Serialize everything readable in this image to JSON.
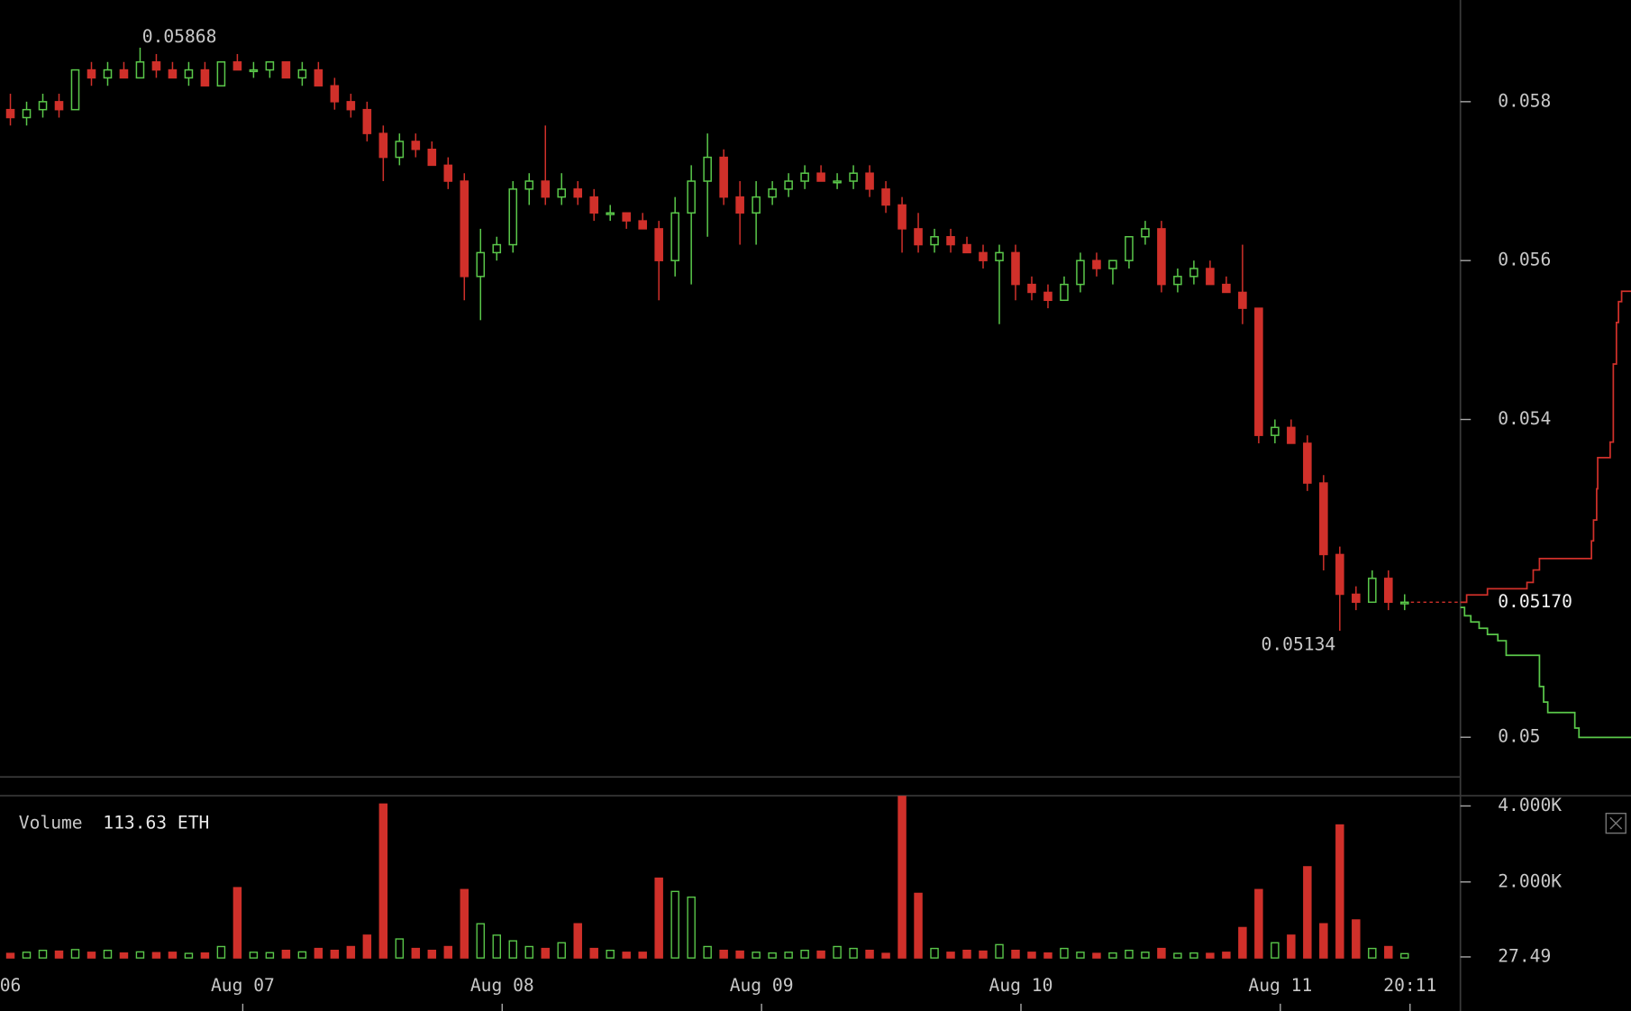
{
  "chart_data": {
    "type": "candlestick",
    "up_color": "#5ac84a",
    "down_color": "#d0302a",
    "x": [
      2.5,
      4,
      5.5,
      7,
      8.5,
      10,
      11.5,
      13,
      14.5,
      16,
      17.5,
      19,
      20.5,
      22,
      23.5,
      25,
      26.5,
      28,
      29.5,
      31,
      32.5,
      34,
      35.5,
      37,
      38.5,
      40,
      41.5,
      43,
      44.5,
      46,
      47.5,
      49,
      50.5,
      52,
      53.5,
      55,
      56.5,
      58,
      59.5,
      61,
      62.5,
      64,
      65.5,
      67,
      68.5,
      70,
      71.5,
      73,
      74.5,
      76,
      77.5,
      79,
      80.5,
      82,
      83.5,
      85,
      86.5,
      88,
      89.5,
      91,
      92.5,
      94,
      95.5,
      97,
      98.5,
      100,
      101.5,
      103,
      104.5,
      106,
      107.5,
      109,
      110.5,
      112,
      113.5,
      115,
      116.5,
      118,
      119.5,
      121,
      122.5,
      124,
      125.5,
      127,
      128.5,
      130,
      131.5
    ],
    "open": [
      0.0579,
      0.0578,
      0.0579,
      0.058,
      0.0579,
      0.0584,
      0.0583,
      0.0584,
      0.0583,
      0.0585,
      0.0584,
      0.0583,
      0.0584,
      0.0582,
      0.0585,
      0.0584,
      0.0584,
      0.0585,
      0.0583,
      0.0584,
      0.0582,
      0.058,
      0.0579,
      0.0576,
      0.0573,
      0.0575,
      0.0574,
      0.0572,
      0.057,
      0.0558,
      0.0561,
      0.0562,
      0.0569,
      0.057,
      0.0568,
      0.0569,
      0.0568,
      0.0566,
      0.0566,
      0.0565,
      0.0564,
      0.056,
      0.0566,
      0.057,
      0.0573,
      0.0568,
      0.0566,
      0.0568,
      0.0569,
      0.057,
      0.0571,
      0.057,
      0.057,
      0.0571,
      0.0569,
      0.0567,
      0.0564,
      0.0562,
      0.0563,
      0.0562,
      0.0561,
      0.056,
      0.0561,
      0.0557,
      0.0556,
      0.0555,
      0.0557,
      0.056,
      0.0559,
      0.056,
      0.0563,
      0.0564,
      0.0557,
      0.0558,
      0.0559,
      0.0557,
      0.0556,
      0.0554,
      0.0538,
      0.0539,
      0.0537,
      0.0532,
      0.0523,
      0.0518,
      0.0517,
      0.052,
      0.0517
    ],
    "high": [
      0.0581,
      0.058,
      0.0581,
      0.0581,
      0.0584,
      0.0585,
      0.0585,
      0.0585,
      0.05868,
      0.0586,
      0.0585,
      0.0585,
      0.0585,
      0.0585,
      0.0586,
      0.0585,
      0.0585,
      0.0585,
      0.0585,
      0.0585,
      0.0583,
      0.0581,
      0.058,
      0.0577,
      0.0576,
      0.0576,
      0.0575,
      0.0573,
      0.0571,
      0.0564,
      0.0563,
      0.057,
      0.0571,
      0.0577,
      0.0571,
      0.057,
      0.0569,
      0.0567,
      0.0566,
      0.0566,
      0.0565,
      0.0568,
      0.0572,
      0.0576,
      0.0574,
      0.057,
      0.057,
      0.057,
      0.0571,
      0.0572,
      0.0572,
      0.0571,
      0.0572,
      0.0572,
      0.057,
      0.0568,
      0.0566,
      0.0564,
      0.0564,
      0.0563,
      0.0562,
      0.0562,
      0.0562,
      0.0558,
      0.0557,
      0.0558,
      0.0561,
      0.0561,
      0.056,
      0.0563,
      0.0565,
      0.0565,
      0.0559,
      0.056,
      0.056,
      0.0558,
      0.0562,
      0.0554,
      0.054,
      0.054,
      0.0538,
      0.0533,
      0.0524,
      0.0519,
      0.0521,
      0.0521,
      0.0518
    ],
    "low": [
      0.0577,
      0.0577,
      0.0578,
      0.0578,
      0.0579,
      0.0582,
      0.0582,
      0.0583,
      0.0583,
      0.0583,
      0.0583,
      0.0582,
      0.0582,
      0.0582,
      0.0584,
      0.0583,
      0.0583,
      0.0583,
      0.0582,
      0.0582,
      0.0579,
      0.0578,
      0.0575,
      0.057,
      0.0572,
      0.0573,
      0.0572,
      0.0569,
      0.0555,
      0.05525,
      0.056,
      0.0561,
      0.0567,
      0.0567,
      0.0567,
      0.0567,
      0.0565,
      0.0565,
      0.0564,
      0.0564,
      0.0555,
      0.0558,
      0.0557,
      0.0563,
      0.0567,
      0.0562,
      0.0562,
      0.0567,
      0.0568,
      0.0569,
      0.057,
      0.0569,
      0.0569,
      0.0568,
      0.0566,
      0.0561,
      0.0561,
      0.0561,
      0.0561,
      0.0561,
      0.0559,
      0.0552,
      0.0555,
      0.0555,
      0.0554,
      0.0555,
      0.0556,
      0.0558,
      0.0557,
      0.0559,
      0.0562,
      0.0556,
      0.0556,
      0.0557,
      0.0557,
      0.0556,
      0.0552,
      0.0537,
      0.0537,
      0.0537,
      0.0531,
      0.0521,
      0.05134,
      0.0516,
      0.0517,
      0.0516,
      0.0516
    ],
    "close": [
      0.0578,
      0.0579,
      0.058,
      0.0579,
      0.0584,
      0.0583,
      0.0584,
      0.0583,
      0.0585,
      0.0584,
      0.0583,
      0.0584,
      0.0582,
      0.0585,
      0.0584,
      0.0584,
      0.0585,
      0.0583,
      0.0584,
      0.0582,
      0.058,
      0.0579,
      0.0576,
      0.0573,
      0.0575,
      0.0574,
      0.0572,
      0.057,
      0.0558,
      0.0561,
      0.0562,
      0.0569,
      0.057,
      0.0568,
      0.0569,
      0.0568,
      0.0566,
      0.0566,
      0.0565,
      0.0564,
      0.056,
      0.0566,
      0.057,
      0.0573,
      0.0568,
      0.0566,
      0.0568,
      0.0569,
      0.057,
      0.0571,
      0.057,
      0.057,
      0.0571,
      0.0569,
      0.0567,
      0.0564,
      0.0562,
      0.0563,
      0.0562,
      0.0561,
      0.056,
      0.0561,
      0.0557,
      0.0556,
      0.0555,
      0.0557,
      0.056,
      0.0559,
      0.056,
      0.0563,
      0.0564,
      0.0557,
      0.0558,
      0.0559,
      0.0557,
      0.0556,
      0.0554,
      0.0538,
      0.0539,
      0.0537,
      0.0532,
      0.0523,
      0.0518,
      0.0517,
      0.052,
      0.0517,
      0.0517
    ],
    "xlim": [
      1.54,
      136.66
    ],
    "xticks": [
      {
        "value": 0,
        "label": "06"
      },
      {
        "value": 24,
        "label": "Aug 07"
      },
      {
        "value": 48,
        "label": "Aug 08"
      },
      {
        "value": 72,
        "label": "Aug 09"
      },
      {
        "value": 96,
        "label": "Aug 10"
      },
      {
        "value": 120,
        "label": "Aug 11"
      },
      {
        "value": 132,
        "label": "20:11"
      }
    ],
    "ylim": [
      0.0495,
      0.05928
    ],
    "yticks": [
      0.05,
      0.054,
      0.056,
      0.058
    ],
    "annotations": [
      {
        "text": "0.05868",
        "value": 0.05868
      },
      {
        "text": "0.05134",
        "value": 0.05134
      }
    ],
    "last_price": {
      "value": 0.0517,
      "label": "0.05170"
    },
    "volume_title": "Volume",
    "volume_current": {
      "value": 113.63,
      "label": "113.63 ETH"
    },
    "volume": [
      120,
      150,
      200,
      180,
      220,
      150,
      200,
      130,
      160,
      140,
      150,
      120,
      130,
      300,
      1850,
      150,
      140,
      200,
      160,
      250,
      200,
      300,
      600,
      4050,
      500,
      250,
      200,
      300,
      1800,
      900,
      600,
      450,
      300,
      250,
      400,
      900,
      250,
      200,
      150,
      150,
      2100,
      1750,
      1600,
      300,
      200,
      180,
      150,
      130,
      150,
      200,
      180,
      300,
      250,
      200,
      120,
      4250,
      1700,
      250,
      150,
      200,
      180,
      350,
      200,
      150,
      130,
      250,
      150,
      120,
      130,
      200,
      150,
      250,
      120,
      130,
      120,
      150,
      800,
      1800,
      400,
      600,
      2400,
      900,
      3500,
      1000,
      250,
      300,
      113.63
    ],
    "volume_ylim": [
      0,
      4270
    ],
    "volume_yticks": [
      {
        "value": 4000,
        "label": "4.000K"
      },
      {
        "value": 2000,
        "label": "2.000K"
      },
      27.49
    ]
  }
}
